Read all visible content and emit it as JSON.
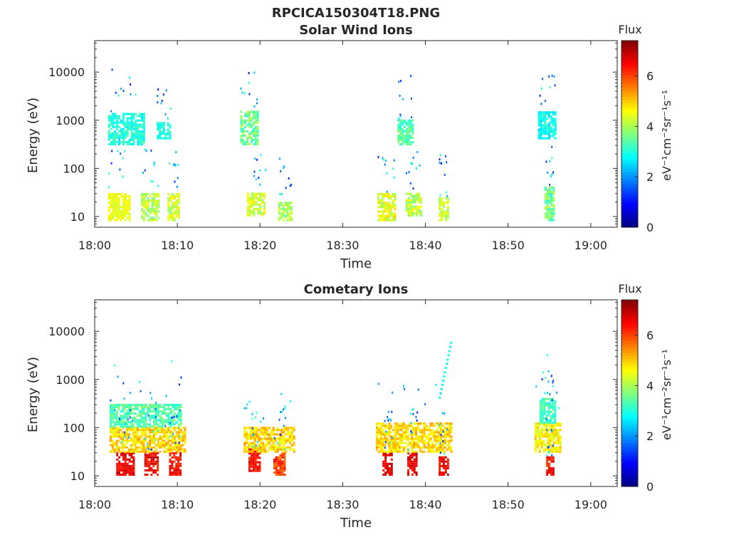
{
  "figure": {
    "title": "RPCICA150304T18.PNG"
  },
  "chart_data": [
    {
      "type": "heatmap",
      "title": "Solar Wind Ions",
      "xlabel": "Time",
      "ylabel": "Energy (eV)",
      "x_tick_labels": [
        "18:00",
        "18:10",
        "18:20",
        "18:30",
        "18:40",
        "18:50",
        "19:00"
      ],
      "x_tick_values_min": [
        0,
        10,
        20,
        30,
        40,
        50,
        60
      ],
      "xlim_min": [
        0,
        63.2
      ],
      "y_scale": "log",
      "y_tick_labels": [
        "10",
        "100",
        "1000",
        "10000"
      ],
      "y_tick_values": [
        10,
        100,
        1000,
        10000
      ],
      "ylim": [
        6,
        45000
      ],
      "colorbar": {
        "title": "Flux",
        "label": "eV⁻¹cm⁻²sr⁻¹s⁻¹",
        "range": [
          0,
          7.4
        ],
        "ticks": [
          0,
          2,
          4,
          6
        ],
        "colormap": "jet"
      },
      "clusters": [
        {
          "time_min": [
            1.6,
            4.2
          ],
          "energy_eV": [
            8,
            30
          ],
          "flux": [
            4.2,
            4.8
          ]
        },
        {
          "time_min": [
            5.6,
            7.6
          ],
          "energy_eV": [
            8,
            30
          ],
          "flux": [
            3.6,
            4.6
          ]
        },
        {
          "time_min": [
            8.8,
            10.2
          ],
          "energy_eV": [
            8,
            30
          ],
          "flux": [
            3.8,
            4.8
          ]
        },
        {
          "time_min": [
            1.6,
            6.0
          ],
          "energy_eV": [
            300,
            1400
          ],
          "flux": [
            2.6,
            3.4
          ]
        },
        {
          "time_min": [
            7.5,
            9.2
          ],
          "energy_eV": [
            400,
            900
          ],
          "flux": [
            2.6,
            3.3
          ]
        },
        {
          "time_min": [
            17.6,
            19.6
          ],
          "energy_eV": [
            300,
            1500
          ],
          "flux": [
            3.0,
            4.2
          ]
        },
        {
          "time_min": [
            18.4,
            20.6
          ],
          "energy_eV": [
            10,
            30
          ],
          "flux": [
            3.8,
            4.8
          ]
        },
        {
          "time_min": [
            22.2,
            23.8
          ],
          "energy_eV": [
            8,
            20
          ],
          "flux": [
            3.6,
            4.4
          ]
        },
        {
          "time_min": [
            34.2,
            36.2
          ],
          "energy_eV": [
            8,
            30
          ],
          "flux": [
            3.8,
            5.0
          ]
        },
        {
          "time_min": [
            37.6,
            39.4
          ],
          "energy_eV": [
            10,
            30
          ],
          "flux": [
            3.6,
            4.8
          ]
        },
        {
          "time_min": [
            41.6,
            42.6
          ],
          "energy_eV": [
            8,
            25
          ],
          "flux": [
            3.8,
            4.6
          ]
        },
        {
          "time_min": [
            36.6,
            38.4
          ],
          "energy_eV": [
            300,
            1000
          ],
          "flux": [
            3.0,
            3.8
          ]
        },
        {
          "time_min": [
            53.6,
            55.6
          ],
          "energy_eV": [
            400,
            1500
          ],
          "flux": [
            2.4,
            3.2
          ]
        },
        {
          "time_min": [
            54.4,
            55.4
          ],
          "energy_eV": [
            8,
            40
          ],
          "flux": [
            3.0,
            4.2
          ]
        }
      ]
    },
    {
      "type": "heatmap",
      "title": "Cometary Ions",
      "xlabel": "Time",
      "ylabel": "Energy (eV)",
      "x_tick_labels": [
        "18:00",
        "18:10",
        "18:20",
        "18:30",
        "18:40",
        "18:50",
        "19:00"
      ],
      "x_tick_values_min": [
        0,
        10,
        20,
        30,
        40,
        50,
        60
      ],
      "xlim_min": [
        0,
        63.2
      ],
      "y_scale": "log",
      "y_tick_labels": [
        "10",
        "100",
        "1000",
        "10000"
      ],
      "y_tick_values": [
        10,
        100,
        1000,
        10000
      ],
      "ylim": [
        6,
        45000
      ],
      "colorbar": {
        "title": "Flux",
        "label": "eV⁻¹cm⁻²sr⁻¹s⁻¹",
        "range": [
          0,
          7.4
        ],
        "ticks": [
          0,
          2,
          4,
          6
        ],
        "colormap": "jet"
      },
      "clusters": [
        {
          "time_min": [
            2.6,
            4.6
          ],
          "energy_eV": [
            10,
            30
          ],
          "flux": [
            6.2,
            7.0
          ]
        },
        {
          "time_min": [
            6.0,
            7.6
          ],
          "energy_eV": [
            10,
            30
          ],
          "flux": [
            6.0,
            7.0
          ]
        },
        {
          "time_min": [
            9.0,
            10.4
          ],
          "energy_eV": [
            10,
            30
          ],
          "flux": [
            6.0,
            6.8
          ]
        },
        {
          "time_min": [
            18.6,
            20.0
          ],
          "energy_eV": [
            12,
            35
          ],
          "flux": [
            6.0,
            6.8
          ]
        },
        {
          "time_min": [
            21.6,
            23.0
          ],
          "energy_eV": [
            10,
            30
          ],
          "flux": [
            5.6,
            6.6
          ]
        },
        {
          "time_min": [
            34.8,
            36.0
          ],
          "energy_eV": [
            10,
            30
          ],
          "flux": [
            6.4,
            7.0
          ]
        },
        {
          "time_min": [
            37.8,
            39.0
          ],
          "energy_eV": [
            10,
            30
          ],
          "flux": [
            6.2,
            7.0
          ]
        },
        {
          "time_min": [
            41.6,
            42.8
          ],
          "energy_eV": [
            10,
            25
          ],
          "flux": [
            6.2,
            7.0
          ]
        },
        {
          "time_min": [
            54.6,
            55.4
          ],
          "energy_eV": [
            10,
            25
          ],
          "flux": [
            6.0,
            6.8
          ]
        },
        {
          "time_min": [
            1.8,
            10.8
          ],
          "energy_eV": [
            30,
            100
          ],
          "flux": [
            4.4,
            5.4
          ]
        },
        {
          "time_min": [
            1.8,
            10.4
          ],
          "energy_eV": [
            100,
            300
          ],
          "flux": [
            3.0,
            3.8
          ]
        },
        {
          "time_min": [
            18.0,
            24.0
          ],
          "energy_eV": [
            30,
            100
          ],
          "flux": [
            4.4,
            5.4
          ]
        },
        {
          "time_min": [
            34.0,
            43.0
          ],
          "energy_eV": [
            30,
            120
          ],
          "flux": [
            4.4,
            5.4
          ]
        },
        {
          "time_min": [
            53.2,
            56.2
          ],
          "energy_eV": [
            30,
            120
          ],
          "flux": [
            4.2,
            5.2
          ]
        },
        {
          "time_min": [
            53.8,
            55.6
          ],
          "energy_eV": [
            120,
            400
          ],
          "flux": [
            2.8,
            3.6
          ]
        }
      ],
      "sparse_tracks": [
        {
          "time_min": [
            41.6,
            43.0
          ],
          "energy_eV": [
            400,
            5500
          ],
          "flux": [
            2.6,
            3.0
          ]
        }
      ]
    }
  ]
}
